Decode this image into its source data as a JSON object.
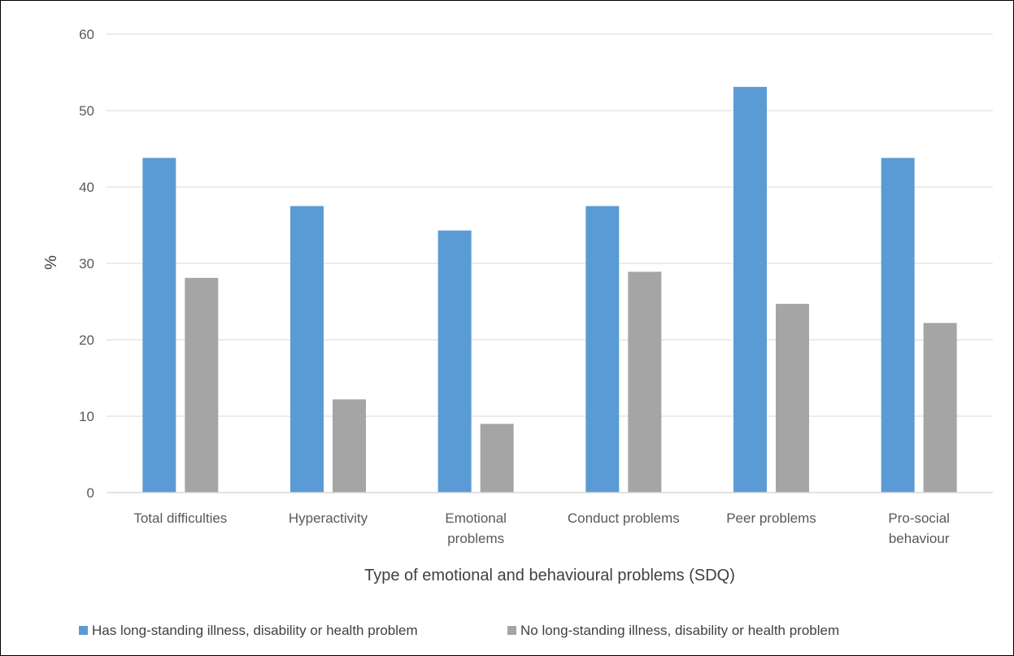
{
  "chart_data": {
    "type": "bar",
    "title": "",
    "xlabel": "Type of emotional and behavioural problems (SDQ)",
    "ylabel": "%",
    "ylim": [
      0,
      60
    ],
    "yticks": [
      0,
      10,
      20,
      30,
      40,
      50,
      60
    ],
    "grid": true,
    "legend_position": "bottom",
    "categories": [
      [
        "Total difficulties"
      ],
      [
        "Hyperactivity"
      ],
      [
        "Emotional",
        "problems"
      ],
      [
        "Conduct problems"
      ],
      [
        "Peer problems"
      ],
      [
        "Pro-social",
        "behaviour"
      ]
    ],
    "series": [
      {
        "name": "Has long-standing illness, disability or health problem",
        "color": "#5B9BD5",
        "values": [
          43.8,
          37.5,
          34.3,
          37.5,
          53.1,
          43.8
        ]
      },
      {
        "name": "No long-standing illness, disability or health problem",
        "color": "#A5A5A5",
        "values": [
          28.1,
          12.2,
          9.0,
          28.9,
          24.7,
          22.2
        ]
      }
    ]
  }
}
